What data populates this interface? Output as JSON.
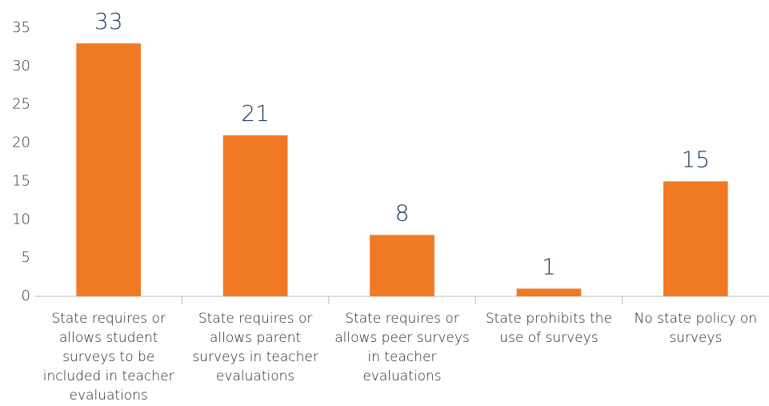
{
  "chart_data": {
    "type": "bar",
    "categories": [
      "State requires or allows student surveys to be included in teacher evaluations",
      "State requires or allows parent surveys in teacher evaluations",
      "State requires or allows peer surveys in teacher evaluations",
      "State prohibits the use of surveys",
      "No state policy on surveys"
    ],
    "values": [
      33,
      21,
      8,
      1,
      15
    ],
    "color": "#f07a24",
    "ylim": [
      0,
      35
    ],
    "yticks": [
      0,
      5,
      10,
      15,
      20,
      25,
      30,
      35
    ],
    "grid": false
  }
}
